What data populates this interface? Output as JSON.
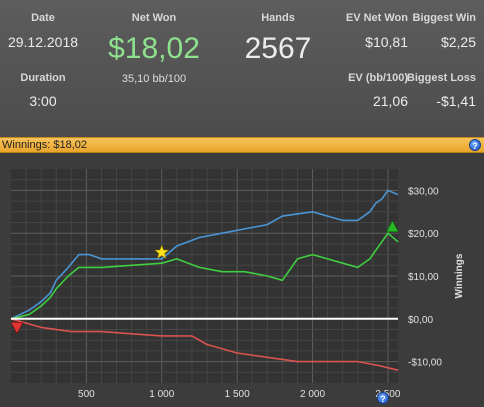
{
  "stats": {
    "date_label": "Date",
    "date_value": "29.12.2018",
    "duration_label": "Duration",
    "duration_value": "3:00",
    "net_won_label": "Net Won",
    "net_won_value": "$18,02",
    "bb_per_100": "35,10 bb/100",
    "hands_label": "Hands",
    "hands_value": "2567",
    "ev_net_won_label": "EV Net Won",
    "ev_net_won_value": "$10,81",
    "biggest_win_label": "Biggest Win",
    "biggest_win_value": "$2,25",
    "ev_bb_label": "EV (bb/100)",
    "ev_bb_value": "21,06",
    "biggest_loss_label": "Biggest Loss",
    "biggest_loss_value": "-$1,41"
  },
  "chart_header": {
    "title": "Winnings: $18,02",
    "help_icon": "help-icon",
    "help_glyph": "?"
  },
  "chart_data": {
    "type": "line",
    "ylabel": "Winnings",
    "xlim": [
      0,
      2567
    ],
    "ylim": [
      -15,
      35
    ],
    "x_ticks": [
      500,
      1000,
      1500,
      2000,
      2500
    ],
    "x_tick_labels": [
      "500",
      "1 000",
      "1 500",
      "2 000",
      "2 500"
    ],
    "y_ticks": [
      30,
      20,
      10,
      0,
      -10
    ],
    "y_tick_labels": [
      "$30,00",
      "$20,00",
      "$10,00",
      "$0,00",
      "-$10,00"
    ],
    "grid": true,
    "series": [
      {
        "color": "#4a95d6",
        "x": [
          0,
          120,
          200,
          260,
          300,
          380,
          450,
          520,
          600,
          800,
          1000,
          1100,
          1250,
          1400,
          1550,
          1700,
          1800,
          1900,
          2000,
          2100,
          2200,
          2300,
          2380,
          2420,
          2460,
          2500,
          2567
        ],
        "y": [
          0,
          2,
          4,
          6,
          9,
          12,
          15,
          15,
          14,
          14,
          14,
          17,
          19,
          20,
          21,
          22,
          24,
          24.5,
          25,
          24,
          23,
          23,
          25,
          27,
          28,
          30,
          29
        ]
      },
      {
        "color": "#3fcf3f",
        "x": [
          0,
          120,
          200,
          260,
          300,
          380,
          450,
          520,
          600,
          800,
          1000,
          1100,
          1250,
          1400,
          1550,
          1700,
          1800,
          1900,
          2000,
          2100,
          2200,
          2300,
          2380,
          2420,
          2460,
          2500,
          2567
        ],
        "y": [
          0,
          1,
          3,
          5,
          7,
          10,
          12,
          12,
          12,
          12.5,
          13,
          14,
          12,
          11,
          11,
          10,
          9,
          14,
          15,
          14,
          13,
          12,
          14,
          16,
          18,
          20,
          18
        ]
      },
      {
        "color": "#d9534f",
        "x": [
          0,
          200,
          400,
          600,
          800,
          1000,
          1200,
          1300,
          1500,
          1700,
          1900,
          2100,
          2300,
          2450,
          2567
        ],
        "y": [
          0,
          -2,
          -3,
          -3,
          -3.5,
          -4,
          -4,
          -6,
          -8,
          -9,
          -10,
          -10,
          -10,
          -11,
          -12
        ]
      },
      {
        "color": "#ffffff",
        "x": [
          0,
          2567
        ],
        "y": [
          0,
          0
        ]
      }
    ],
    "markers": [
      {
        "shape": "star",
        "color": "#ffe11a",
        "x": 1000,
        "y": 15.5
      },
      {
        "shape": "triangle-down",
        "color": "#e23333",
        "x": 0,
        "y": -2
      },
      {
        "shape": "triangle-up",
        "color": "#25b825",
        "x": 2530,
        "y": 21.5
      }
    ]
  }
}
